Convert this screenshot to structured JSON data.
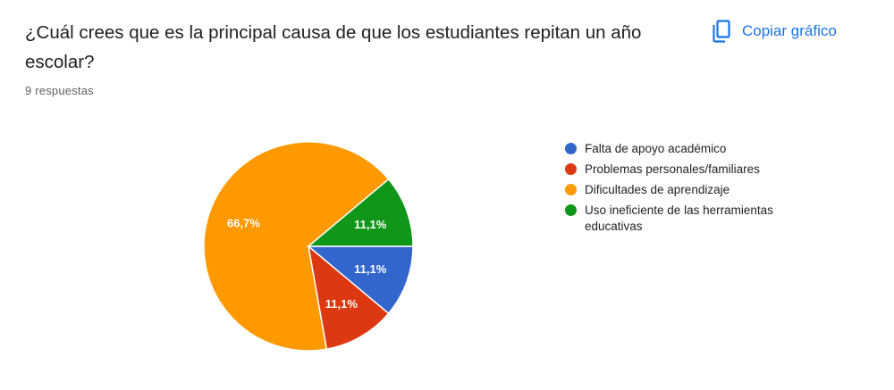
{
  "question": "¿Cuál crees que es la principal causa de que los estudiantes repitan un año escolar?",
  "responses": "9 respuestas",
  "copy_button": {
    "label": "Copiar gráfico",
    "icon": "copy-icon"
  },
  "chart_data": {
    "type": "pie",
    "total_responses": 9,
    "legend_position": "right",
    "series": [
      {
        "name": "Falta de apoyo académico",
        "value": 1,
        "label": "11,1%",
        "color": "#3366cc"
      },
      {
        "name": "Problemas personales/familiares",
        "value": 1,
        "label": "11,1%",
        "color": "#dc3912"
      },
      {
        "name": "Dificultades de aprendizaje",
        "value": 6,
        "label": "66,7%",
        "color": "#ff9900"
      },
      {
        "name": "Uso ineficiente de las herramientas educativas",
        "value": 1,
        "label": "11,1%",
        "color": "#109618"
      }
    ]
  }
}
